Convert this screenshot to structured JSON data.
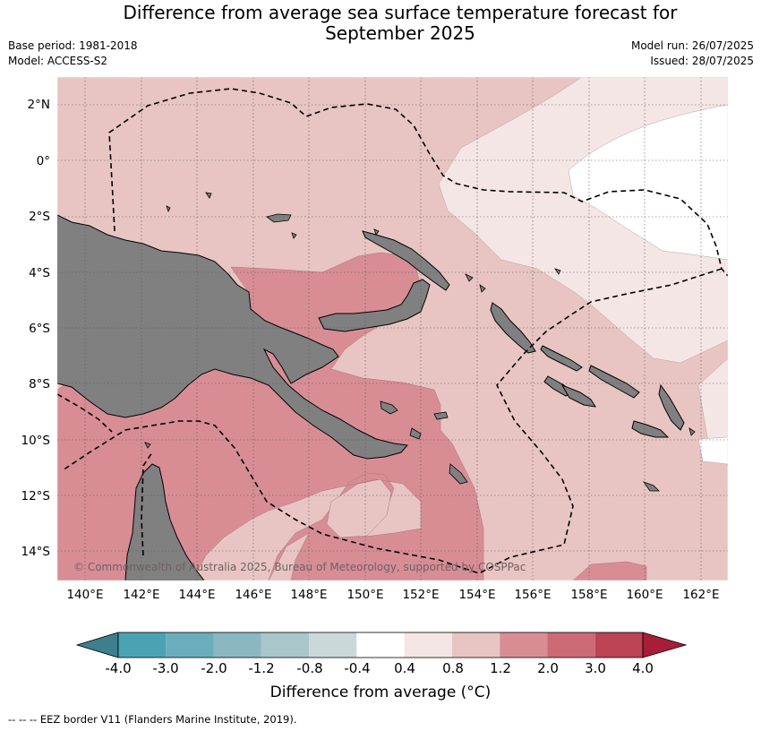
{
  "title": {
    "line1": "Difference from average sea surface temperature forecast for",
    "line2": "September 2025"
  },
  "meta_left": {
    "base_period": "Base period: 1981-2018",
    "model": "Model: ACCESS-S2"
  },
  "meta_right": {
    "model_run": "Model run: 26/07/2025",
    "issued": "Issued: 28/07/2025"
  },
  "map": {
    "lat_labels": [
      "2°N",
      "0°",
      "2°S",
      "4°S",
      "6°S",
      "8°S",
      "10°S",
      "12°S",
      "14°S"
    ],
    "lon_labels": [
      "140°E",
      "142°E",
      "144°E",
      "146°E",
      "148°E",
      "150°E",
      "152°E",
      "154°E",
      "156°E",
      "158°E",
      "160°E",
      "162°E"
    ],
    "copyright": "© Commonwealth of Australia 2025, Bureau of Meteorology, supported by COSPPac",
    "land_color": "#808080"
  },
  "colorbar": {
    "ticks": [
      "-4.0",
      "-3.0",
      "-2.0",
      "-1.2",
      "-0.8",
      "-0.4",
      "0.4",
      "0.8",
      "1.2",
      "2.0",
      "3.0",
      "4.0"
    ],
    "colors": [
      "#3c7f8d",
      "#4aa3b3",
      "#6aaebd",
      "#8ab7c2",
      "#a9c6cb",
      "#cbd8da",
      "#ffffff",
      "#f4e6e4",
      "#e8c5c2",
      "#d88d95",
      "#cc6a75",
      "#bc4455",
      "#a81d38"
    ],
    "title": "Difference from average (°C)"
  },
  "footer": "--  --  -- EEZ border V11 (Flanders Marine Institute, 2019)."
}
